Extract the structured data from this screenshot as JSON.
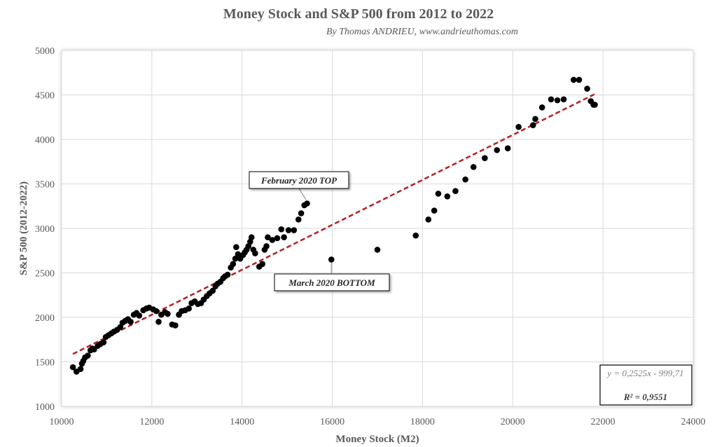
{
  "chart_data": {
    "type": "scatter",
    "title": "Money Stock and S&P 500 from 2012 to 2022",
    "subtitle": "By Thomas ANDRIEU, www.andrieuthomas.com",
    "xlabel": "Money Stock (M2)",
    "ylabel": "S&P 500 (2012-2022)",
    "xlim": [
      10000,
      24000
    ],
    "ylim": [
      1000,
      5000
    ],
    "xticks": [
      "10000",
      "12000",
      "14000",
      "16000",
      "18000",
      "20000",
      "22000",
      "24000"
    ],
    "yticks": [
      "1000",
      "1500",
      "2000",
      "2500",
      "3000",
      "3500",
      "4000",
      "4500",
      "5000"
    ],
    "grid": true,
    "marker_color": "#000000",
    "trendline": {
      "slope": 0.2525,
      "intercept": -999.71,
      "x_range": [
        10250,
        21850
      ],
      "color": "#b22222",
      "style": "dashed",
      "equation": "y = 0,2525x - 999,71",
      "r_squared": "R² = 0,9551"
    },
    "annotations": [
      {
        "text": "February 2020 TOP",
        "x": 15450,
        "y": 3290
      },
      {
        "text": "March 2020 BOTTOM",
        "x": 15980,
        "y": 2650
      }
    ],
    "points": [
      [
        10250,
        1440
      ],
      [
        10330,
        1390
      ],
      [
        10420,
        1420
      ],
      [
        10450,
        1480
      ],
      [
        10480,
        1510
      ],
      [
        10520,
        1550
      ],
      [
        10580,
        1570
      ],
      [
        10640,
        1630
      ],
      [
        10680,
        1650
      ],
      [
        10720,
        1640
      ],
      [
        10800,
        1680
      ],
      [
        10860,
        1700
      ],
      [
        10930,
        1720
      ],
      [
        10980,
        1780
      ],
      [
        11040,
        1800
      ],
      [
        11100,
        1820
      ],
      [
        11160,
        1840
      ],
      [
        11230,
        1860
      ],
      [
        11300,
        1890
      ],
      [
        11350,
        1940
      ],
      [
        11410,
        1960
      ],
      [
        11470,
        1980
      ],
      [
        11530,
        1950
      ],
      [
        11600,
        2030
      ],
      [
        11660,
        2050
      ],
      [
        11720,
        2020
      ],
      [
        11810,
        2080
      ],
      [
        11880,
        2100
      ],
      [
        11940,
        2110
      ],
      [
        12030,
        2090
      ],
      [
        12100,
        2070
      ],
      [
        12150,
        1950
      ],
      [
        12210,
        2030
      ],
      [
        12290,
        2060
      ],
      [
        12350,
        2040
      ],
      [
        12450,
        1920
      ],
      [
        12520,
        1910
      ],
      [
        12600,
        2030
      ],
      [
        12660,
        2070
      ],
      [
        12740,
        2080
      ],
      [
        12820,
        2100
      ],
      [
        12880,
        2160
      ],
      [
        12950,
        2180
      ],
      [
        13020,
        2150
      ],
      [
        13090,
        2160
      ],
      [
        13150,
        2200
      ],
      [
        13220,
        2240
      ],
      [
        13280,
        2270
      ],
      [
        13350,
        2300
      ],
      [
        13410,
        2350
      ],
      [
        13460,
        2380
      ],
      [
        13520,
        2400
      ],
      [
        13580,
        2440
      ],
      [
        13620,
        2460
      ],
      [
        13680,
        2480
      ],
      [
        13750,
        2560
      ],
      [
        13800,
        2600
      ],
      [
        13850,
        2660
      ],
      [
        13870,
        2790
      ],
      [
        13910,
        2710
      ],
      [
        13960,
        2660
      ],
      [
        14020,
        2700
      ],
      [
        14060,
        2730
      ],
      [
        14100,
        2760
      ],
      [
        14140,
        2800
      ],
      [
        14180,
        2850
      ],
      [
        14210,
        2900
      ],
      [
        14250,
        2760
      ],
      [
        14290,
        2720
      ],
      [
        14380,
        2570
      ],
      [
        14450,
        2600
      ],
      [
        14500,
        2760
      ],
      [
        14540,
        2800
      ],
      [
        14570,
        2900
      ],
      [
        14670,
        2870
      ],
      [
        14780,
        2890
      ],
      [
        14870,
        2990
      ],
      [
        14930,
        2900
      ],
      [
        15030,
        2980
      ],
      [
        15150,
        2980
      ],
      [
        15250,
        3100
      ],
      [
        15310,
        3170
      ],
      [
        15380,
        3260
      ],
      [
        15440,
        3280
      ],
      [
        15980,
        2650
      ],
      [
        17000,
        2760
      ],
      [
        17850,
        2920
      ],
      [
        18130,
        3100
      ],
      [
        18260,
        3200
      ],
      [
        18350,
        3390
      ],
      [
        18550,
        3360
      ],
      [
        18730,
        3420
      ],
      [
        18950,
        3550
      ],
      [
        19130,
        3690
      ],
      [
        19380,
        3790
      ],
      [
        19650,
        3880
      ],
      [
        19890,
        3900
      ],
      [
        20130,
        4140
      ],
      [
        20450,
        4160
      ],
      [
        20500,
        4230
      ],
      [
        20650,
        4360
      ],
      [
        20850,
        4450
      ],
      [
        20990,
        4440
      ],
      [
        21130,
        4450
      ],
      [
        21350,
        4670
      ],
      [
        21470,
        4670
      ],
      [
        21650,
        4570
      ],
      [
        21730,
        4430
      ],
      [
        21790,
        4390
      ],
      [
        21820,
        4390
      ]
    ]
  }
}
